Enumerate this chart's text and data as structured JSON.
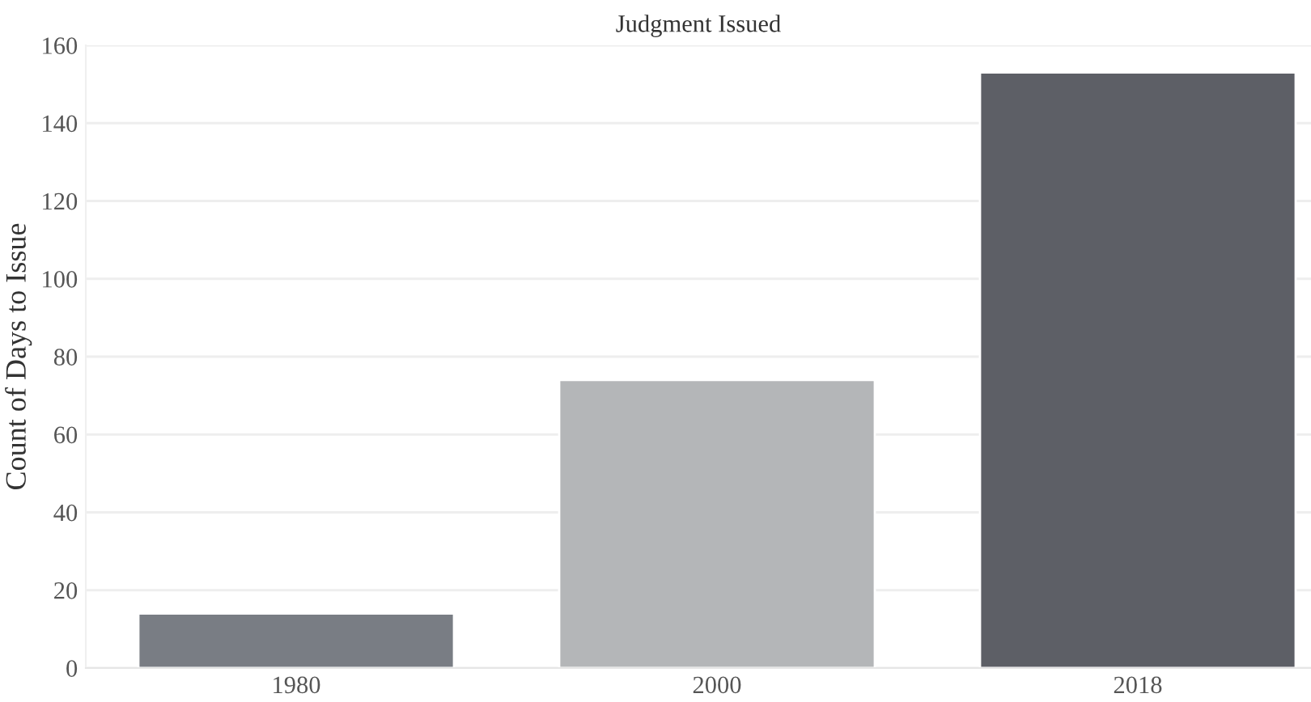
{
  "chart_data": {
    "type": "bar",
    "title": "Judgment Issued",
    "ylabel": "Count of Days to Issue",
    "categories": [
      "1980",
      "2000",
      "2018"
    ],
    "values": [
      14,
      74,
      153
    ],
    "colors": [
      "#777c86",
      "#b3b6b9",
      "#5b5e68"
    ],
    "ylim": [
      0,
      160
    ],
    "yticks": [
      0,
      20,
      40,
      60,
      80,
      100,
      120,
      140,
      160
    ],
    "grid": "y",
    "legend": false
  }
}
